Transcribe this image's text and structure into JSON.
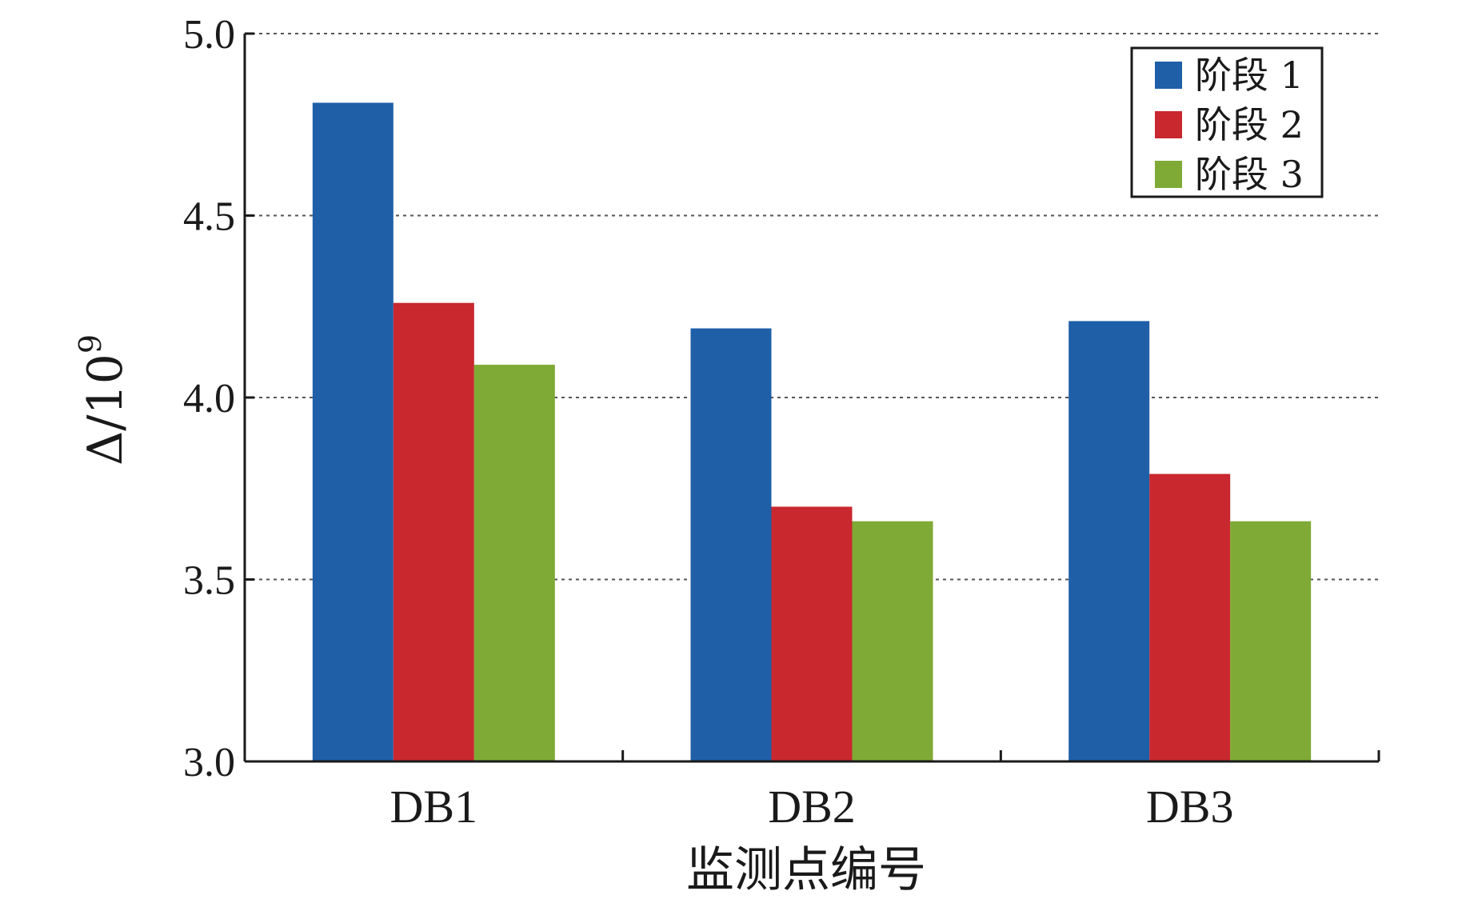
{
  "chart_data": {
    "type": "bar",
    "categories": [
      "DB1",
      "DB2",
      "DB3"
    ],
    "series": [
      {
        "name": "阶段 1",
        "color": "#1f5fa8",
        "values": [
          4.81,
          4.19,
          4.21
        ]
      },
      {
        "name": "阶段 2",
        "color": "#c8282e",
        "values": [
          4.26,
          3.7,
          3.79
        ]
      },
      {
        "name": "阶段 3",
        "color": "#7faa35",
        "values": [
          4.09,
          3.66,
          3.66
        ]
      }
    ],
    "title": "",
    "xlabel": "监测点编号",
    "ylabel_main": "Δ/10",
    "ylabel_exp": "9",
    "ylim": [
      3.0,
      5.0
    ],
    "yticks": [
      "3.0",
      "3.5",
      "4.0",
      "4.5",
      "5.0"
    ],
    "grid": "horizontal dotted",
    "legend_position": "top-right"
  }
}
